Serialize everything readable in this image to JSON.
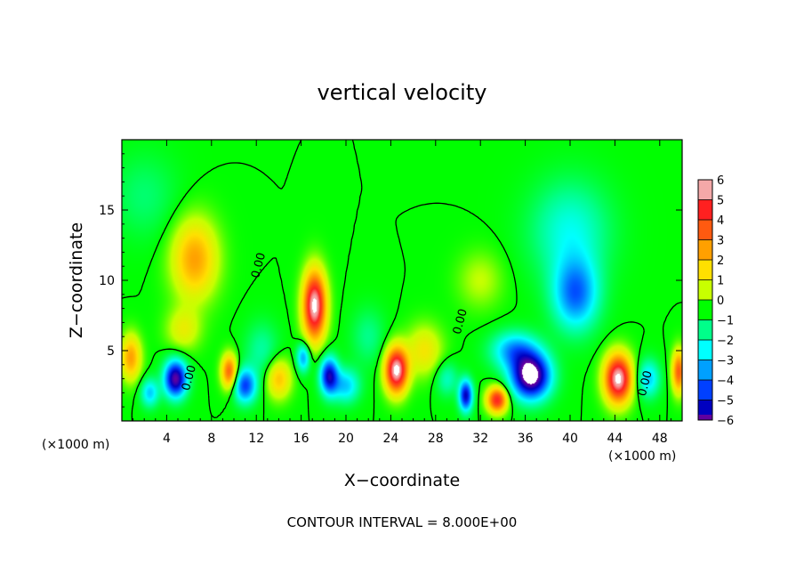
{
  "chart_data": {
    "type": "heatmap",
    "title": "vertical velocity",
    "xlabel": "X−coordinate",
    "ylabel": "Z−coordinate",
    "x_unit_left": "(×1000 m)",
    "x_unit_right": "(×1000 m)",
    "xlim": [
      0,
      50
    ],
    "ylim": [
      0,
      20
    ],
    "x_ticks": [
      4,
      8,
      12,
      16,
      20,
      24,
      28,
      32,
      36,
      40,
      44,
      48
    ],
    "x_tick_labels": [
      "4",
      "8",
      "12",
      "16",
      "20",
      "24",
      "28",
      "32",
      "36",
      "40",
      "44",
      "48"
    ],
    "y_ticks": [
      5,
      10,
      15
    ],
    "y_tick_labels": [
      "5",
      "10",
      "15"
    ],
    "contour_level": 0,
    "contour_labels": [
      {
        "text": "0.00",
        "x": 12.5,
        "y": 11
      },
      {
        "text": "0.00",
        "x": 6.3,
        "y": 3
      },
      {
        "text": "0.00",
        "x": 30.5,
        "y": 7
      },
      {
        "text": "0.00",
        "x": 47,
        "y": 2.6
      }
    ],
    "colorbar": {
      "min": -6,
      "max": 6,
      "tick_values": [
        6,
        5,
        4,
        3,
        2,
        1,
        0,
        -1,
        -2,
        -3,
        -4,
        -5,
        -6
      ],
      "tick_labels": [
        "6",
        "5",
        "4",
        "3",
        "2",
        "1",
        "0",
        "−1",
        "−2",
        "−3",
        "−4",
        "−5",
        "−6"
      ],
      "colors": [
        "#f4a8a8",
        "#ff2020",
        "#ff5a10",
        "#ffa000",
        "#ffe000",
        "#c8ff00",
        "#00ff00",
        "#00ff8a",
        "#00ffff",
        "#00a0ff",
        "#0040ff",
        "#0000c0",
        "#6000a0"
      ]
    },
    "features": [
      {
        "x": 0.8,
        "z": 4.5,
        "w": 3,
        "sx": 0.9,
        "sz": 1.6
      },
      {
        "x": 4.8,
        "z": 3.0,
        "w": -6,
        "sx": 1.0,
        "sz": 1.3
      },
      {
        "x": 6.5,
        "z": 11.5,
        "w": 3,
        "sx": 2.0,
        "sz": 2.8
      },
      {
        "x": 5.5,
        "z": 6.5,
        "w": 1.5,
        "sx": 1.5,
        "sz": 1.5
      },
      {
        "x": 9.6,
        "z": 3.5,
        "w": 4,
        "sx": 0.7,
        "sz": 1.2
      },
      {
        "x": 11.0,
        "z": 2.5,
        "w": -4,
        "sx": 1.0,
        "sz": 1.2
      },
      {
        "x": 14.0,
        "z": 3.0,
        "w": 2.5,
        "sx": 1.1,
        "sz": 1.4
      },
      {
        "x": 17.2,
        "z": 8.2,
        "w": 6.5,
        "sx": 1.0,
        "sz": 2.4
      },
      {
        "x": 18.5,
        "z": 3.2,
        "w": -5,
        "sx": 0.8,
        "sz": 1.3
      },
      {
        "x": 16.2,
        "z": 4.5,
        "w": -3,
        "sx": 0.6,
        "sz": 1.0
      },
      {
        "x": 20.0,
        "z": 2.5,
        "w": -2.5,
        "sx": 1.2,
        "sz": 1.2
      },
      {
        "x": 24.5,
        "z": 3.6,
        "w": 6.5,
        "sx": 1.0,
        "sz": 1.6
      },
      {
        "x": 27.0,
        "z": 5.0,
        "w": 1.8,
        "sx": 1.6,
        "sz": 1.8
      },
      {
        "x": 30.7,
        "z": 1.8,
        "w": -5,
        "sx": 0.6,
        "sz": 1.1
      },
      {
        "x": 33.5,
        "z": 1.5,
        "w": 5,
        "sx": 0.9,
        "sz": 0.9
      },
      {
        "x": 36.5,
        "z": 3.2,
        "w": -7,
        "sx": 1.7,
        "sz": 1.6
      },
      {
        "x": 35.0,
        "z": 5.0,
        "w": -3,
        "sx": 2.0,
        "sz": 1.3
      },
      {
        "x": 40.5,
        "z": 9.0,
        "w": -3.5,
        "sx": 2.0,
        "sz": 2.5
      },
      {
        "x": 40.0,
        "z": 13.5,
        "w": -1.8,
        "sx": 3.5,
        "sz": 3.5
      },
      {
        "x": 44.3,
        "z": 3.0,
        "w": 6.5,
        "sx": 1.2,
        "sz": 1.7
      },
      {
        "x": 47.0,
        "z": 3.0,
        "w": -2.5,
        "sx": 1.0,
        "sz": 1.3
      },
      {
        "x": 49.7,
        "z": 3.5,
        "w": 4,
        "sx": 0.6,
        "sz": 1.5
      },
      {
        "x": 2.5,
        "z": 2.0,
        "w": -2.5,
        "sx": 0.8,
        "sz": 1.0
      },
      {
        "x": 12.5,
        "z": 5.0,
        "w": -1.2,
        "sx": 1.5,
        "sz": 2.0
      },
      {
        "x": 22.0,
        "z": 6.0,
        "w": -1.0,
        "sx": 1.5,
        "sz": 2.0
      },
      {
        "x": 29.0,
        "z": 3.0,
        "w": -1.5,
        "sx": 1.0,
        "sz": 1.2
      },
      {
        "x": 32.0,
        "z": 10.0,
        "w": 1.0,
        "sx": 2.0,
        "sz": 2.0
      },
      {
        "x": 2.0,
        "z": 16.0,
        "w": -0.8,
        "sx": 3.0,
        "sz": 3.0
      }
    ]
  },
  "footer": {
    "contour_interval": "CONTOUR INTERVAL = 8.000E+00"
  }
}
